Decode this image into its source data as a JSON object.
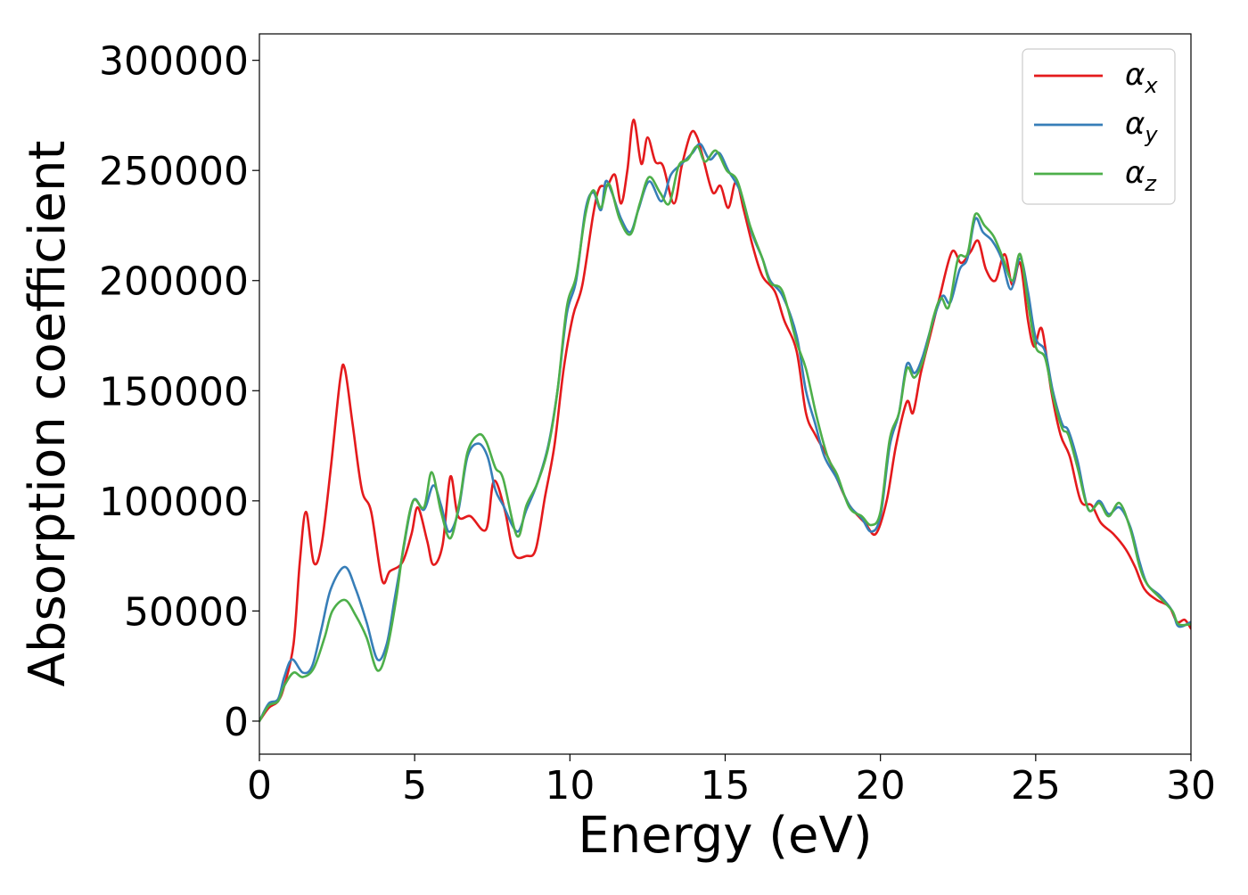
{
  "chart_data": {
    "type": "line",
    "title": "",
    "xlabel": "Energy (eV)",
    "ylabel": "Absorption coefficient",
    "xlim": [
      0,
      30
    ],
    "ylim": [
      -15000,
      312000
    ],
    "grid": false,
    "legend_position": "top-right",
    "x_ticks": [
      0,
      5,
      10,
      15,
      20,
      25,
      30
    ],
    "y_ticks": [
      0,
      50000,
      100000,
      150000,
      200000,
      250000,
      300000
    ],
    "x_tick_labels": [
      "0",
      "5",
      "10",
      "15",
      "20",
      "25",
      "30"
    ],
    "y_tick_labels": [
      "0",
      "50000",
      "100000",
      "150000",
      "200000",
      "250000",
      "300000"
    ],
    "series": [
      {
        "name": "α",
        "subscript": "x",
        "color": "#e41a1c",
        "points": [
          [
            0,
            0
          ],
          [
            0.3,
            6000
          ],
          [
            0.6,
            9000
          ],
          [
            0.8,
            16000
          ],
          [
            1.1,
            35000
          ],
          [
            1.3,
            72000
          ],
          [
            1.5,
            95000
          ],
          [
            1.75,
            72000
          ],
          [
            2.0,
            80000
          ],
          [
            2.3,
            115000
          ],
          [
            2.6,
            155000
          ],
          [
            2.75,
            160000
          ],
          [
            3.0,
            135000
          ],
          [
            3.3,
            105000
          ],
          [
            3.6,
            95000
          ],
          [
            3.95,
            64000
          ],
          [
            4.2,
            68000
          ],
          [
            4.6,
            72000
          ],
          [
            4.9,
            85000
          ],
          [
            5.1,
            97000
          ],
          [
            5.4,
            82000
          ],
          [
            5.6,
            71000
          ],
          [
            5.9,
            80000
          ],
          [
            6.15,
            111000
          ],
          [
            6.4,
            93000
          ],
          [
            6.8,
            93000
          ],
          [
            7.3,
            87000
          ],
          [
            7.55,
            109000
          ],
          [
            7.9,
            96000
          ],
          [
            8.2,
            76000
          ],
          [
            8.6,
            75000
          ],
          [
            8.9,
            78000
          ],
          [
            9.2,
            102000
          ],
          [
            9.5,
            125000
          ],
          [
            9.8,
            160000
          ],
          [
            10.1,
            184000
          ],
          [
            10.4,
            198000
          ],
          [
            10.75,
            230000
          ],
          [
            10.95,
            242000
          ],
          [
            11.2,
            243000
          ],
          [
            11.45,
            248000
          ],
          [
            11.65,
            235000
          ],
          [
            11.85,
            250000
          ],
          [
            12.05,
            273000
          ],
          [
            12.3,
            253000
          ],
          [
            12.5,
            265000
          ],
          [
            12.75,
            254000
          ],
          [
            13.0,
            252000
          ],
          [
            13.35,
            235000
          ],
          [
            13.6,
            252000
          ],
          [
            13.9,
            267000
          ],
          [
            14.1,
            265000
          ],
          [
            14.3,
            255000
          ],
          [
            14.6,
            240000
          ],
          [
            14.85,
            243000
          ],
          [
            15.1,
            233000
          ],
          [
            15.35,
            245000
          ],
          [
            15.6,
            232000
          ],
          [
            15.9,
            215000
          ],
          [
            16.2,
            202000
          ],
          [
            16.6,
            195000
          ],
          [
            16.9,
            182000
          ],
          [
            17.3,
            168000
          ],
          [
            17.6,
            140000
          ],
          [
            17.9,
            130000
          ],
          [
            18.3,
            120000
          ],
          [
            18.6,
            110000
          ],
          [
            19.0,
            98000
          ],
          [
            19.5,
            90000
          ],
          [
            19.85,
            85000
          ],
          [
            20.2,
            100000
          ],
          [
            20.5,
            125000
          ],
          [
            20.85,
            145000
          ],
          [
            21.05,
            140000
          ],
          [
            21.3,
            158000
          ],
          [
            21.6,
            175000
          ],
          [
            21.9,
            192000
          ],
          [
            22.3,
            213000
          ],
          [
            22.6,
            208000
          ],
          [
            22.9,
            213000
          ],
          [
            23.15,
            218000
          ],
          [
            23.4,
            205000
          ],
          [
            23.7,
            200000
          ],
          [
            24.0,
            212000
          ],
          [
            24.25,
            198000
          ],
          [
            24.5,
            208000
          ],
          [
            24.75,
            182000
          ],
          [
            24.95,
            170000
          ],
          [
            25.2,
            178000
          ],
          [
            25.5,
            150000
          ],
          [
            25.8,
            130000
          ],
          [
            26.1,
            120000
          ],
          [
            26.45,
            100000
          ],
          [
            26.8,
            98000
          ],
          [
            27.1,
            90000
          ],
          [
            27.5,
            85000
          ],
          [
            27.9,
            78000
          ],
          [
            28.2,
            70000
          ],
          [
            28.5,
            60000
          ],
          [
            28.9,
            55000
          ],
          [
            29.3,
            52000
          ],
          [
            29.55,
            45000
          ],
          [
            29.8,
            46000
          ],
          [
            30.0,
            42000
          ]
        ]
      },
      {
        "name": "α",
        "subscript": "y",
        "color": "#377eb8",
        "points": [
          [
            0,
            0
          ],
          [
            0.3,
            8000
          ],
          [
            0.6,
            10000
          ],
          [
            0.8,
            20000
          ],
          [
            1.05,
            28000
          ],
          [
            1.4,
            22000
          ],
          [
            1.7,
            25000
          ],
          [
            2.0,
            42000
          ],
          [
            2.3,
            60000
          ],
          [
            2.75,
            70000
          ],
          [
            3.1,
            60000
          ],
          [
            3.45,
            45000
          ],
          [
            3.8,
            28000
          ],
          [
            4.1,
            35000
          ],
          [
            4.35,
            55000
          ],
          [
            4.6,
            75000
          ],
          [
            4.95,
            100000
          ],
          [
            5.3,
            96000
          ],
          [
            5.6,
            107000
          ],
          [
            5.85,
            98000
          ],
          [
            6.1,
            86000
          ],
          [
            6.4,
            95000
          ],
          [
            6.7,
            120000
          ],
          [
            7.05,
            126000
          ],
          [
            7.35,
            120000
          ],
          [
            7.6,
            105000
          ],
          [
            7.85,
            98000
          ],
          [
            8.3,
            86000
          ],
          [
            8.6,
            96000
          ],
          [
            8.95,
            108000
          ],
          [
            9.3,
            125000
          ],
          [
            9.6,
            150000
          ],
          [
            9.9,
            185000
          ],
          [
            10.2,
            200000
          ],
          [
            10.5,
            232000
          ],
          [
            10.75,
            240000
          ],
          [
            11.0,
            232000
          ],
          [
            11.15,
            245000
          ],
          [
            11.35,
            240000
          ],
          [
            11.65,
            228000
          ],
          [
            11.95,
            222000
          ],
          [
            12.2,
            232000
          ],
          [
            12.55,
            245000
          ],
          [
            12.95,
            236000
          ],
          [
            13.25,
            248000
          ],
          [
            13.6,
            253000
          ],
          [
            13.95,
            258000
          ],
          [
            14.2,
            262000
          ],
          [
            14.5,
            255000
          ],
          [
            14.8,
            258000
          ],
          [
            15.1,
            250000
          ],
          [
            15.5,
            240000
          ],
          [
            15.85,
            222000
          ],
          [
            16.2,
            210000
          ],
          [
            16.45,
            200000
          ],
          [
            16.85,
            193000
          ],
          [
            17.3,
            175000
          ],
          [
            17.6,
            150000
          ],
          [
            17.9,
            135000
          ],
          [
            18.2,
            120000
          ],
          [
            18.6,
            110000
          ],
          [
            19.0,
            98000
          ],
          [
            19.4,
            92000
          ],
          [
            19.7,
            86000
          ],
          [
            20.0,
            93000
          ],
          [
            20.3,
            125000
          ],
          [
            20.6,
            140000
          ],
          [
            20.85,
            162000
          ],
          [
            21.1,
            158000
          ],
          [
            21.35,
            165000
          ],
          [
            21.7,
            182000
          ],
          [
            22.0,
            193000
          ],
          [
            22.25,
            190000
          ],
          [
            22.55,
            205000
          ],
          [
            22.8,
            210000
          ],
          [
            23.05,
            228000
          ],
          [
            23.3,
            222000
          ],
          [
            23.6,
            218000
          ],
          [
            23.9,
            210000
          ],
          [
            24.2,
            196000
          ],
          [
            24.5,
            210000
          ],
          [
            24.75,
            195000
          ],
          [
            25.0,
            174000
          ],
          [
            25.3,
            168000
          ],
          [
            25.55,
            150000
          ],
          [
            25.85,
            135000
          ],
          [
            26.05,
            132000
          ],
          [
            26.35,
            118000
          ],
          [
            26.7,
            96000
          ],
          [
            27.05,
            100000
          ],
          [
            27.35,
            94000
          ],
          [
            27.7,
            97000
          ],
          [
            28.05,
            88000
          ],
          [
            28.35,
            72000
          ],
          [
            28.6,
            62000
          ],
          [
            29.0,
            57000
          ],
          [
            29.4,
            50000
          ],
          [
            29.6,
            43000
          ],
          [
            30.0,
            45000
          ]
        ]
      },
      {
        "name": "α",
        "subscript": "z",
        "color": "#4daf4a",
        "points": [
          [
            0,
            0
          ],
          [
            0.3,
            7000
          ],
          [
            0.6,
            9000
          ],
          [
            0.8,
            16000
          ],
          [
            1.1,
            22000
          ],
          [
            1.4,
            20000
          ],
          [
            1.75,
            24000
          ],
          [
            2.1,
            38000
          ],
          [
            2.35,
            50000
          ],
          [
            2.75,
            55000
          ],
          [
            3.1,
            48000
          ],
          [
            3.45,
            38000
          ],
          [
            3.8,
            23000
          ],
          [
            4.1,
            32000
          ],
          [
            4.4,
            55000
          ],
          [
            4.65,
            80000
          ],
          [
            4.95,
            100000
          ],
          [
            5.3,
            97000
          ],
          [
            5.55,
            113000
          ],
          [
            5.85,
            95000
          ],
          [
            6.15,
            83000
          ],
          [
            6.45,
            100000
          ],
          [
            6.7,
            122000
          ],
          [
            7.05,
            130000
          ],
          [
            7.3,
            127000
          ],
          [
            7.6,
            115000
          ],
          [
            7.85,
            110000
          ],
          [
            8.3,
            84000
          ],
          [
            8.6,
            98000
          ],
          [
            8.95,
            108000
          ],
          [
            9.3,
            124000
          ],
          [
            9.6,
            150000
          ],
          [
            9.9,
            188000
          ],
          [
            10.2,
            202000
          ],
          [
            10.5,
            230000
          ],
          [
            10.75,
            241000
          ],
          [
            11.0,
            233000
          ],
          [
            11.25,
            244000
          ],
          [
            11.6,
            228000
          ],
          [
            11.95,
            221000
          ],
          [
            12.25,
            235000
          ],
          [
            12.55,
            247000
          ],
          [
            12.9,
            240000
          ],
          [
            13.2,
            235000
          ],
          [
            13.5,
            252000
          ],
          [
            13.8,
            255000
          ],
          [
            14.1,
            261000
          ],
          [
            14.35,
            254000
          ],
          [
            14.7,
            259000
          ],
          [
            15.05,
            250000
          ],
          [
            15.4,
            245000
          ],
          [
            15.8,
            225000
          ],
          [
            16.2,
            210000
          ],
          [
            16.45,
            199000
          ],
          [
            16.85,
            195000
          ],
          [
            17.3,
            172000
          ],
          [
            17.6,
            160000
          ],
          [
            17.95,
            138000
          ],
          [
            18.3,
            120000
          ],
          [
            18.6,
            112000
          ],
          [
            19.0,
            97000
          ],
          [
            19.4,
            93000
          ],
          [
            19.7,
            89000
          ],
          [
            20.0,
            95000
          ],
          [
            20.3,
            128000
          ],
          [
            20.6,
            140000
          ],
          [
            20.85,
            160000
          ],
          [
            21.1,
            156000
          ],
          [
            21.4,
            165000
          ],
          [
            21.7,
            183000
          ],
          [
            21.95,
            192000
          ],
          [
            22.2,
            188000
          ],
          [
            22.5,
            210000
          ],
          [
            22.8,
            212000
          ],
          [
            23.05,
            230000
          ],
          [
            23.35,
            225000
          ],
          [
            23.65,
            220000
          ],
          [
            23.95,
            210000
          ],
          [
            24.25,
            200000
          ],
          [
            24.5,
            212000
          ],
          [
            24.75,
            190000
          ],
          [
            25.0,
            170000
          ],
          [
            25.3,
            165000
          ],
          [
            25.55,
            148000
          ],
          [
            25.85,
            133000
          ],
          [
            26.05,
            130000
          ],
          [
            26.35,
            115000
          ],
          [
            26.7,
            96000
          ],
          [
            27.05,
            99000
          ],
          [
            27.35,
            93000
          ],
          [
            27.7,
            99000
          ],
          [
            28.05,
            87000
          ],
          [
            28.35,
            70000
          ],
          [
            28.6,
            62000
          ],
          [
            29.0,
            56000
          ],
          [
            29.4,
            50000
          ],
          [
            29.6,
            44000
          ],
          [
            30.0,
            44000
          ]
        ]
      }
    ]
  }
}
